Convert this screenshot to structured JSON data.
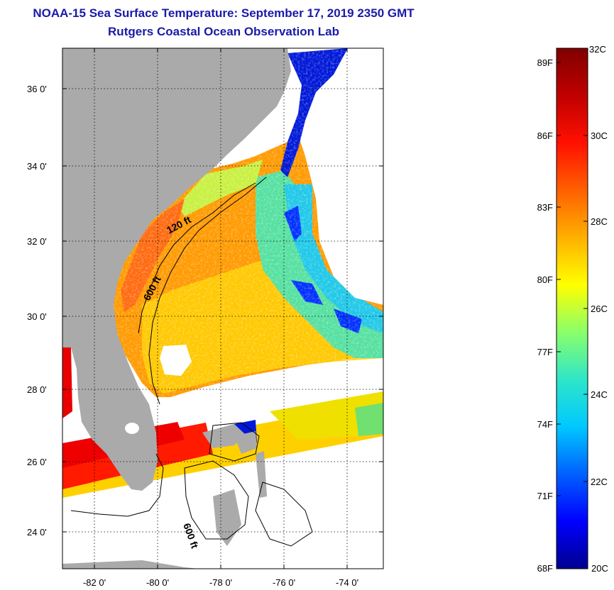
{
  "header": {
    "title": "NOAA-15 Sea Surface Temperature:  September 17, 2019 2350 GMT",
    "subtitle": "Rutgers Coastal Ocean Observation Lab"
  },
  "map": {
    "lat_ticks": [
      {
        "label": "36 0'",
        "lat": 36
      },
      {
        "label": "34 0'",
        "lat": 34
      },
      {
        "label": "32 0'",
        "lat": 32
      },
      {
        "label": "30 0'",
        "lat": 30
      },
      {
        "label": "28 0'",
        "lat": 28
      },
      {
        "label": "26 0'",
        "lat": 26
      },
      {
        "label": "24 0'",
        "lat": 24
      }
    ],
    "lon_ticks": [
      {
        "label": "-82 0'",
        "lon": -82
      },
      {
        "label": "-80 0'",
        "lon": -80
      },
      {
        "label": "-78 0'",
        "lon": -78
      },
      {
        "label": "-76 0'",
        "lon": -76
      },
      {
        "label": "-74 0'",
        "lon": -74
      }
    ],
    "contour_labels": [
      "120 ft",
      "600 ft",
      "600 ft"
    ],
    "colors": {
      "land": "#aaaaaa",
      "frame": "#000000",
      "title": "#1a1aa8"
    }
  },
  "colorbar": {
    "top_label": "32C",
    "bottom_label": "20C",
    "fahrenheit": [
      "89F",
      "86F",
      "83F",
      "80F",
      "77F",
      "74F",
      "71F",
      "68F"
    ],
    "celsius": [
      "30C",
      "28C",
      "26C",
      "24C",
      "22C"
    ],
    "stops": [
      "#00008f",
      "#0000ff",
      "#0060ff",
      "#00c8ff",
      "#2ee6c8",
      "#8aff6a",
      "#ffff00",
      "#ffb000",
      "#ff6000",
      "#ff1000",
      "#c00000",
      "#800000"
    ]
  }
}
